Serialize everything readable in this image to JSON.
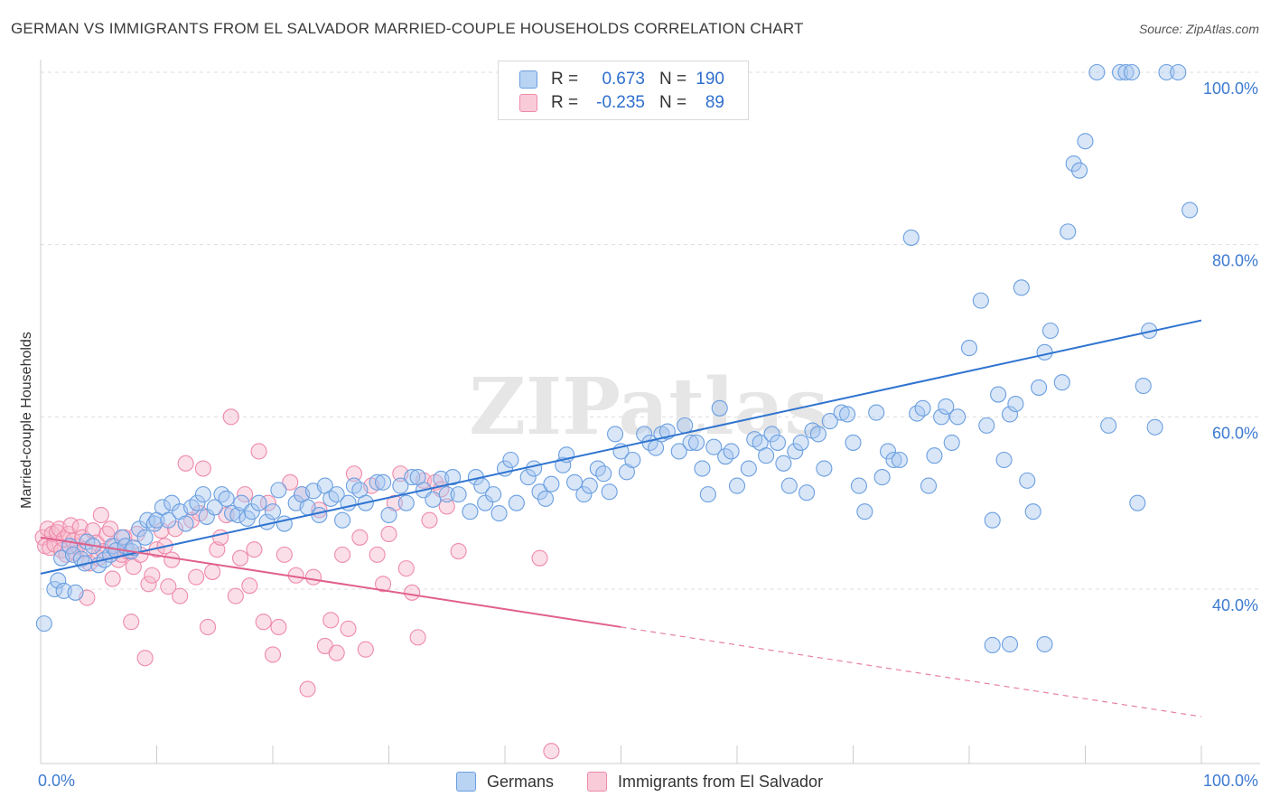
{
  "title": "GERMAN VS IMMIGRANTS FROM EL SALVADOR MARRIED-COUPLE HOUSEHOLDS CORRELATION CHART",
  "source": "Source: ZipAtlas.com",
  "watermark": "ZIPatlas",
  "legend_top": {
    "r_label": "R =",
    "n_label": "N =",
    "rows": [
      {
        "r": "0.673",
        "n": "190"
      },
      {
        "r": "-0.235",
        "n": "89"
      }
    ]
  },
  "chart_data": {
    "type": "scatter",
    "xlabel": "",
    "ylabel": "Married-couple Households",
    "xlim": [
      0,
      100
    ],
    "ylim": [
      21,
      100
    ],
    "x_tick_labels": [
      {
        "value": 0,
        "label": "0.0%"
      },
      {
        "value": 100,
        "label": "100.0%"
      }
    ],
    "y_tick_labels": [
      {
        "value": 40,
        "label": "40.0%"
      },
      {
        "value": 60,
        "label": "60.0%"
      },
      {
        "value": 80,
        "label": "80.0%"
      },
      {
        "value": 100,
        "label": "100.0%"
      }
    ],
    "grid": true,
    "legend_position": "bottom",
    "colors": {
      "germans_fill": "#a9c8f0",
      "germans_stroke": "#6b9fe0",
      "germans_line": "#2f74d0",
      "salvador_fill": "#f6b9cc",
      "salvador_stroke": "#ee8aaa",
      "salvador_line": "#e0608c",
      "tick_label": "#3d7ad1"
    },
    "series": [
      {
        "name": "Germans",
        "trend": {
          "x0": 0,
          "y0": 41.8,
          "x1": 100,
          "y1": 71.2,
          "solid_until": 100
        },
        "points": [
          [
            0.3,
            36
          ],
          [
            1.2,
            40
          ],
          [
            1.5,
            41
          ],
          [
            1.8,
            43.6
          ],
          [
            2,
            39.8
          ],
          [
            2.5,
            45
          ],
          [
            2.8,
            44
          ],
          [
            3,
            39.6
          ],
          [
            3.5,
            43.5
          ],
          [
            3.8,
            43
          ],
          [
            4,
            45.5
          ],
          [
            4.5,
            45
          ],
          [
            5,
            42.8
          ],
          [
            5.5,
            43.4
          ],
          [
            6,
            44
          ],
          [
            6.2,
            45
          ],
          [
            6.5,
            44.5
          ],
          [
            7,
            46
          ],
          [
            7.3,
            45
          ],
          [
            7.8,
            44.4
          ],
          [
            8,
            44.8
          ],
          [
            8.5,
            47
          ],
          [
            9,
            46
          ],
          [
            9.2,
            48
          ],
          [
            9.8,
            47.6
          ],
          [
            10,
            48
          ],
          [
            10.5,
            49.5
          ],
          [
            11,
            48
          ],
          [
            11.3,
            50
          ],
          [
            12,
            49
          ],
          [
            12.5,
            47.6
          ],
          [
            13,
            49.5
          ],
          [
            13.5,
            50
          ],
          [
            14,
            51
          ],
          [
            14.3,
            48.4
          ],
          [
            15,
            49.5
          ],
          [
            15.6,
            51
          ],
          [
            16,
            50.5
          ],
          [
            16.5,
            48.8
          ],
          [
            17,
            48.6
          ],
          [
            17.3,
            50
          ],
          [
            17.8,
            48.2
          ],
          [
            18.2,
            49
          ],
          [
            18.8,
            50
          ],
          [
            19.5,
            47.8
          ],
          [
            20,
            49
          ],
          [
            20.5,
            51.5
          ],
          [
            21,
            47.6
          ],
          [
            22,
            50
          ],
          [
            22.5,
            51
          ],
          [
            23,
            49.5
          ],
          [
            23.5,
            51.4
          ],
          [
            24,
            48.6
          ],
          [
            24.5,
            52
          ],
          [
            25,
            50.5
          ],
          [
            25.5,
            51
          ],
          [
            26,
            48
          ],
          [
            26.5,
            50
          ],
          [
            27,
            52
          ],
          [
            27.5,
            51.5
          ],
          [
            28,
            50
          ],
          [
            29,
            52.4
          ],
          [
            29.5,
            52.4
          ],
          [
            30,
            48.6
          ],
          [
            31,
            52
          ],
          [
            31.5,
            50
          ],
          [
            32,
            53
          ],
          [
            32.5,
            53
          ],
          [
            33,
            51.5
          ],
          [
            33.8,
            50.4
          ],
          [
            34.5,
            52.8
          ],
          [
            35,
            51
          ],
          [
            35.5,
            53
          ],
          [
            36,
            51
          ],
          [
            37,
            49
          ],
          [
            37.5,
            53
          ],
          [
            38,
            52
          ],
          [
            38.3,
            50
          ],
          [
            39,
            51
          ],
          [
            39.5,
            48.8
          ],
          [
            40,
            54
          ],
          [
            40.5,
            55
          ],
          [
            41,
            50
          ],
          [
            42,
            53
          ],
          [
            42.5,
            54
          ],
          [
            43,
            51.3
          ],
          [
            43.5,
            50.5
          ],
          [
            44,
            52.2
          ],
          [
            45,
            54.4
          ],
          [
            45.3,
            55.6
          ],
          [
            46,
            52.4
          ],
          [
            46.8,
            51
          ],
          [
            47.3,
            52
          ],
          [
            48,
            54
          ],
          [
            48.5,
            53.4
          ],
          [
            49,
            51.3
          ],
          [
            49.5,
            58
          ],
          [
            50,
            56
          ],
          [
            50.5,
            53.6
          ],
          [
            51,
            55
          ],
          [
            52,
            58
          ],
          [
            52.5,
            57
          ],
          [
            53,
            56.4
          ],
          [
            53.5,
            58
          ],
          [
            54,
            58.3
          ],
          [
            55,
            56
          ],
          [
            55.5,
            59
          ],
          [
            56,
            57
          ],
          [
            56.5,
            57
          ],
          [
            57,
            54
          ],
          [
            57.5,
            51
          ],
          [
            58,
            56.5
          ],
          [
            58.5,
            61
          ],
          [
            59,
            55.4
          ],
          [
            59.5,
            56
          ],
          [
            60,
            52
          ],
          [
            61,
            54
          ],
          [
            61.5,
            57.4
          ],
          [
            62,
            57
          ],
          [
            62.5,
            55.5
          ],
          [
            63,
            58
          ],
          [
            63.5,
            57
          ],
          [
            64,
            54.6
          ],
          [
            64.5,
            52
          ],
          [
            65,
            56
          ],
          [
            65.5,
            57
          ],
          [
            66,
            51.2
          ],
          [
            66.5,
            58.4
          ],
          [
            67,
            58
          ],
          [
            67.5,
            54
          ],
          [
            68,
            59.5
          ],
          [
            69,
            60.5
          ],
          [
            69.5,
            60.3
          ],
          [
            70,
            57
          ],
          [
            70.5,
            52
          ],
          [
            71,
            49
          ],
          [
            72,
            60.5
          ],
          [
            72.5,
            53
          ],
          [
            73,
            56
          ],
          [
            73.5,
            55
          ],
          [
            74,
            55
          ],
          [
            75,
            80.8
          ],
          [
            75.5,
            60.4
          ],
          [
            76,
            61
          ],
          [
            76.5,
            52
          ],
          [
            77,
            55.5
          ],
          [
            77.6,
            60
          ],
          [
            78,
            61.2
          ],
          [
            78.5,
            57
          ],
          [
            79,
            60
          ],
          [
            80,
            68
          ],
          [
            81,
            73.5
          ],
          [
            81.5,
            59
          ],
          [
            82,
            48
          ],
          [
            82.5,
            62.6
          ],
          [
            83,
            55
          ],
          [
            83.5,
            60.3
          ],
          [
            84,
            61.5
          ],
          [
            84.5,
            75
          ],
          [
            85,
            52.6
          ],
          [
            85.5,
            49
          ],
          [
            86,
            63.4
          ],
          [
            86.5,
            67.5
          ],
          [
            87,
            70
          ],
          [
            88,
            64
          ],
          [
            88.5,
            81.5
          ],
          [
            89,
            89.4
          ],
          [
            89.5,
            88.6
          ],
          [
            90,
            92
          ],
          [
            91,
            100
          ],
          [
            92,
            59
          ],
          [
            93,
            100
          ],
          [
            93.5,
            100
          ],
          [
            94,
            100
          ],
          [
            94.5,
            50
          ],
          [
            95,
            63.6
          ],
          [
            95.5,
            70
          ],
          [
            96,
            58.8
          ],
          [
            97,
            100
          ],
          [
            98,
            100
          ],
          [
            99,
            84
          ],
          [
            82,
            33.5
          ],
          [
            83.5,
            33.6
          ],
          [
            86.5,
            33.6
          ]
        ]
      },
      {
        "name": "Immigrants from El Salvador",
        "trend": {
          "x0": 0,
          "y0": 46,
          "x1": 100,
          "y1": 25.2,
          "solid_until": 50
        },
        "points": [
          [
            0.2,
            46
          ],
          [
            0.4,
            45
          ],
          [
            0.6,
            47
          ],
          [
            0.8,
            44.8
          ],
          [
            1,
            46.4
          ],
          [
            1.2,
            45.2
          ],
          [
            1.4,
            46.6
          ],
          [
            1.6,
            47
          ],
          [
            1.8,
            44.5
          ],
          [
            2,
            45.8
          ],
          [
            2.2,
            44
          ],
          [
            2.4,
            46.4
          ],
          [
            2.6,
            47.4
          ],
          [
            2.8,
            45.6
          ],
          [
            3,
            44.2
          ],
          [
            3.2,
            45
          ],
          [
            3.4,
            47.2
          ],
          [
            3.6,
            46
          ],
          [
            3.8,
            44.6
          ],
          [
            4,
            39
          ],
          [
            4.2,
            43
          ],
          [
            4.5,
            46.8
          ],
          [
            4.8,
            45.4
          ],
          [
            5,
            43.6
          ],
          [
            5.2,
            48.6
          ],
          [
            5.4,
            44.4
          ],
          [
            5.7,
            46.4
          ],
          [
            6,
            47
          ],
          [
            6.2,
            41.2
          ],
          [
            6.4,
            45
          ],
          [
            6.7,
            43.4
          ],
          [
            7,
            44
          ],
          [
            7.2,
            46
          ],
          [
            7.5,
            44.4
          ],
          [
            7.8,
            36.2
          ],
          [
            8,
            42.6
          ],
          [
            8.3,
            46.4
          ],
          [
            8.6,
            44
          ],
          [
            9,
            32
          ],
          [
            9.3,
            40.6
          ],
          [
            9.6,
            41.6
          ],
          [
            10,
            44.6
          ],
          [
            10.4,
            46.8
          ],
          [
            10.7,
            45
          ],
          [
            11,
            40.3
          ],
          [
            11.3,
            43.4
          ],
          [
            11.6,
            47
          ],
          [
            12,
            39.2
          ],
          [
            12.5,
            54.6
          ],
          [
            13,
            48
          ],
          [
            13.4,
            41.4
          ],
          [
            13.7,
            48.8
          ],
          [
            14,
            54
          ],
          [
            14.4,
            35.6
          ],
          [
            14.8,
            42
          ],
          [
            15.2,
            44.6
          ],
          [
            15.5,
            46
          ],
          [
            16,
            48.6
          ],
          [
            16.4,
            60
          ],
          [
            16.8,
            39.2
          ],
          [
            17.2,
            43.6
          ],
          [
            17.6,
            51
          ],
          [
            18,
            40.4
          ],
          [
            18.4,
            44.6
          ],
          [
            18.8,
            56
          ],
          [
            19.2,
            36.2
          ],
          [
            19.6,
            50
          ],
          [
            20,
            32.4
          ],
          [
            20.5,
            35.6
          ],
          [
            21,
            44
          ],
          [
            21.5,
            52.4
          ],
          [
            22,
            41.6
          ],
          [
            22.5,
            51
          ],
          [
            23,
            28.4
          ],
          [
            23.5,
            41.4
          ],
          [
            24,
            49.2
          ],
          [
            24.5,
            33.4
          ],
          [
            25,
            36.4
          ],
          [
            25.5,
            32.6
          ],
          [
            26,
            44
          ],
          [
            26.5,
            35.4
          ],
          [
            27,
            53.4
          ],
          [
            27.5,
            46
          ],
          [
            28,
            33
          ],
          [
            28.5,
            52
          ],
          [
            29,
            44
          ],
          [
            29.5,
            40.6
          ],
          [
            30,
            46.4
          ],
          [
            30.5,
            50
          ],
          [
            31,
            53.4
          ],
          [
            31.5,
            42.4
          ],
          [
            32,
            39.6
          ],
          [
            32.5,
            34.4
          ],
          [
            33,
            52.6
          ],
          [
            33.5,
            48
          ],
          [
            34,
            52.4
          ],
          [
            34.5,
            51.6
          ],
          [
            35,
            49.6
          ],
          [
            36,
            44.4
          ],
          [
            43,
            43.6
          ],
          [
            44,
            21.2
          ]
        ]
      }
    ]
  }
}
